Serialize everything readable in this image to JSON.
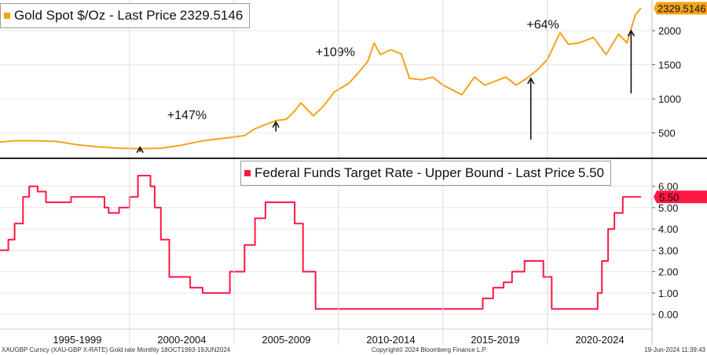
{
  "chart_data": [
    {
      "type": "line",
      "title": "Gold Spot $/Oz - Last Price",
      "series": [
        {
          "name": "Gold Spot $/Oz",
          "color": "#f5a31a",
          "points": [
            [
              1993.8,
              365
            ],
            [
              1994.5,
              385
            ],
            [
              1995.5,
              385
            ],
            [
              1996.5,
              375
            ],
            [
              1997.5,
              325
            ],
            [
              1998.5,
              295
            ],
            [
              1999.5,
              275
            ],
            [
              2000.5,
              270
            ],
            [
              2001.5,
              275
            ],
            [
              2002.5,
              320
            ],
            [
              2003.5,
              385
            ],
            [
              2004.5,
              420
            ],
            [
              2005.5,
              460
            ],
            [
              2006.0,
              560
            ],
            [
              2006.5,
              620
            ],
            [
              2007.0,
              680
            ],
            [
              2007.5,
              700
            ],
            [
              2007.9,
              820
            ],
            [
              2008.2,
              940
            ],
            [
              2008.8,
              750
            ],
            [
              2009.3,
              900
            ],
            [
              2009.8,
              1100
            ],
            [
              2010.5,
              1230
            ],
            [
              2011.0,
              1400
            ],
            [
              2011.4,
              1550
            ],
            [
              2011.7,
              1820
            ],
            [
              2012.0,
              1650
            ],
            [
              2012.5,
              1720
            ],
            [
              2013.0,
              1660
            ],
            [
              2013.4,
              1300
            ],
            [
              2014.0,
              1280
            ],
            [
              2014.5,
              1320
            ],
            [
              2015.0,
              1200
            ],
            [
              2015.9,
              1060
            ],
            [
              2016.5,
              1320
            ],
            [
              2017.0,
              1200
            ],
            [
              2017.5,
              1260
            ],
            [
              2018.0,
              1320
            ],
            [
              2018.5,
              1200
            ],
            [
              2019.0,
              1300
            ],
            [
              2019.5,
              1420
            ],
            [
              2020.0,
              1580
            ],
            [
              2020.6,
              1970
            ],
            [
              2021.0,
              1800
            ],
            [
              2021.5,
              1820
            ],
            [
              2022.2,
              1900
            ],
            [
              2022.8,
              1650
            ],
            [
              2023.4,
              1950
            ],
            [
              2023.8,
              1820
            ],
            [
              2024.2,
              2230
            ],
            [
              2024.47,
              2329.5146
            ]
          ]
        }
      ],
      "last_price_label": "2329.5146",
      "y_ticks": [
        500,
        1000,
        1500,
        2000
      ],
      "ylim": [
        150,
        2450
      ],
      "annotations": [
        {
          "text": "+147%",
          "x": 2001.8,
          "y": 700
        },
        {
          "text": "+109%",
          "x": 2008.9,
          "y": 1630
        },
        {
          "text": "+64%",
          "x": 2019.0,
          "y": 2030
        }
      ],
      "arrows": [
        {
          "x": 2000.5,
          "y_from": 220,
          "y_to": 290
        },
        {
          "x": 2007.0,
          "y_from": 520,
          "y_to": 660
        },
        {
          "x": 2019.2,
          "y_from": 400,
          "y_to": 1300
        },
        {
          "x": 2024.0,
          "y_from": 1080,
          "y_to": 2000
        }
      ]
    },
    {
      "type": "line",
      "title": "Federal Funds Target Rate - Upper Bound - Last Price",
      "series": [
        {
          "name": "Federal Funds Target Rate - Upper Bound",
          "color": "#ff1744",
          "points": [
            [
              1993.8,
              3.0
            ],
            [
              1994.2,
              3.5
            ],
            [
              1994.5,
              4.25
            ],
            [
              1994.9,
              5.5
            ],
            [
              1995.2,
              6.0
            ],
            [
              1995.6,
              5.75
            ],
            [
              1996.0,
              5.25
            ],
            [
              1997.2,
              5.5
            ],
            [
              1998.8,
              5.0
            ],
            [
              1999.0,
              4.75
            ],
            [
              1999.5,
              5.0
            ],
            [
              2000.0,
              5.5
            ],
            [
              2000.4,
              6.5
            ],
            [
              2000.9,
              6.5
            ],
            [
              2001.0,
              6.0
            ],
            [
              2001.2,
              5.0
            ],
            [
              2001.5,
              3.5
            ],
            [
              2001.9,
              1.75
            ],
            [
              2002.9,
              1.25
            ],
            [
              2003.5,
              1.0
            ],
            [
              2004.5,
              1.0
            ],
            [
              2004.8,
              2.0
            ],
            [
              2005.5,
              3.25
            ],
            [
              2006.0,
              4.5
            ],
            [
              2006.5,
              5.25
            ],
            [
              2007.6,
              5.25
            ],
            [
              2007.9,
              4.25
            ],
            [
              2008.3,
              2.0
            ],
            [
              2008.9,
              0.25
            ],
            [
              2015.9,
              0.25
            ],
            [
              2016.9,
              0.75
            ],
            [
              2017.4,
              1.25
            ],
            [
              2017.9,
              1.5
            ],
            [
              2018.3,
              2.0
            ],
            [
              2018.9,
              2.5
            ],
            [
              2019.5,
              2.5
            ],
            [
              2019.8,
              1.75
            ],
            [
              2020.2,
              0.25
            ],
            [
              2022.1,
              0.25
            ],
            [
              2022.4,
              1.0
            ],
            [
              2022.6,
              2.5
            ],
            [
              2022.9,
              4.0
            ],
            [
              2023.2,
              4.75
            ],
            [
              2023.6,
              5.5
            ],
            [
              2024.47,
              5.5
            ]
          ]
        }
      ],
      "last_price_label": "5.50",
      "y_ticks": [
        "0.00",
        "1.00",
        "2.00",
        "3.00",
        "4.00",
        "5.00",
        "6.00"
      ],
      "ylim": [
        -0.4,
        7.2
      ]
    }
  ],
  "x_axis": {
    "range": [
      1993.8,
      2025.0
    ],
    "period_labels": [
      {
        "label": "1995-1999",
        "center": 1997.5
      },
      {
        "label": "2000-2004",
        "center": 2002.5
      },
      {
        "label": "2005-2009",
        "center": 2007.5
      },
      {
        "label": "2010-2014",
        "center": 2012.5
      },
      {
        "label": "2015-2019",
        "center": 2017.5
      },
      {
        "label": "2020-2024",
        "center": 2022.5
      }
    ],
    "dividers": [
      2000.0,
      2005.0,
      2010.0,
      2015.0,
      2020.0
    ]
  },
  "legend_gold": {
    "label": "Gold Spot $/Oz - Last Price",
    "value": "2329.5146",
    "color": "#f5a31a"
  },
  "legend_fed": {
    "label": "Federal Funds Target Rate - Upper Bound - Last Price",
    "value": "5.50",
    "color": "#ff1744"
  },
  "footer": {
    "left": "XAUGBP Curncy (XAU-GBP X-RATE) Gold rate  Monthly 18OCT1993-19JUN2024",
    "center": "Copyright© 2024 Bloomberg Finance L.P.",
    "right": "19-Jun-2024 11:39:43"
  }
}
